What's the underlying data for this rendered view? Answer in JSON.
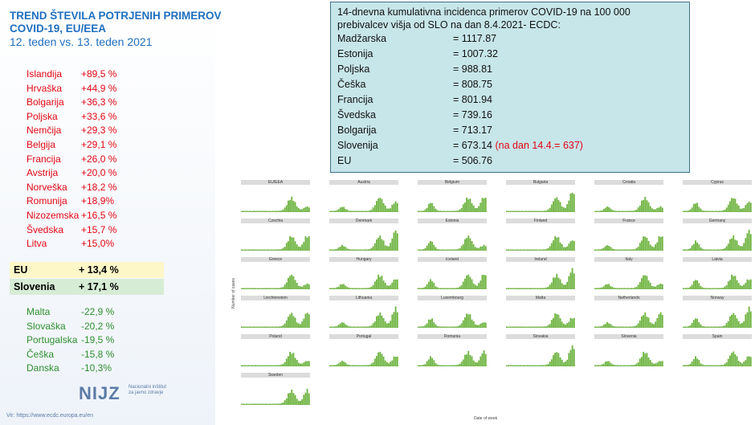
{
  "title": {
    "line1": "TREND ŠTEVILA POTRJENIH PRIMEROV",
    "line2": "COVID-19, EU/EEA",
    "line3": "12. teden vs. 13. teden 2021"
  },
  "increase": [
    {
      "name": "Islandija",
      "value": "+89,5 %"
    },
    {
      "name": "Hrvaška",
      "value": "+44,9 %"
    },
    {
      "name": "Bolgarija",
      "value": "+36,3 %"
    },
    {
      "name": "Poljska",
      "value": "+33,6 %"
    },
    {
      "name": "Nemčija",
      "value": "+29,3 %"
    },
    {
      "name": "Belgija",
      "value": "+29,1 %"
    },
    {
      "name": "Francija",
      "value": "+26,0 %"
    },
    {
      "name": "Avstrija",
      "value": "+20,0 %"
    },
    {
      "name": "Norveška",
      "value": "+18,2 %"
    },
    {
      "name": "Romunija",
      "value": "+18,9%"
    },
    {
      "name": "Nizozemska",
      "value": "+16,5 %"
    },
    {
      "name": "Švedska",
      "value": "+15,7 %"
    },
    {
      "name": "Litva",
      "value": "+15,0%"
    }
  ],
  "highlight": [
    {
      "name": "EU",
      "value": "+ 13,4 %",
      "color": "#fdf7c8"
    },
    {
      "name": "Slovenia",
      "value": "+ 17,1 %",
      "color": "#d7ecd5"
    }
  ],
  "decrease": [
    {
      "name": "Malta",
      "value": "-22,9 %"
    },
    {
      "name": "Slovaška",
      "value": "-20,2 %"
    },
    {
      "name": "Portugalska",
      "value": "-19,5 %"
    },
    {
      "name": "Češka",
      "value": "-15,8 %"
    },
    {
      "name": "Danska",
      "value": "-10,3%"
    }
  ],
  "logo": {
    "mark": "NIJZ",
    "line1": "Nacionalni inštitut",
    "line2": "za javno zdravje"
  },
  "source": "Vir: https://www.ecdc.europa.eu/en",
  "infobox": {
    "heading": "14-dnevna kumulativna incidenca primerov COVID-19 na 100 000 prebivalcev višja  od SLO na dan 8.4.2021- ECDC:",
    "rows": [
      {
        "name": "Madžarska",
        "value": "= 1117.87"
      },
      {
        "name": "Estonija",
        "value": "= 1007.32"
      },
      {
        "name": "Poljska",
        "value": "= 988.81"
      },
      {
        "name": "Češka",
        "value": "= 808.75"
      },
      {
        "name": "Francija",
        "value": "= 801.94"
      },
      {
        "name": "Švedska",
        "value": "= 739.16"
      },
      {
        "name": "Bolgarija",
        "value": "= 713.17"
      },
      {
        "name": "Slovenija",
        "value": "= 673.14",
        "note": "(na dan 14.4.= 637)"
      },
      {
        "name": "EU",
        "value": "= 506.76"
      }
    ],
    "background": "#c7e6ea"
  },
  "chart_grid": {
    "ylabel": "Number of cases",
    "xlabel": "Date of week",
    "bar_color": "#6db33f",
    "panels": [
      "EU/EEA",
      "Austria",
      "Belgium",
      "Bulgaria",
      "Croatia",
      "Cyprus",
      "Czechia",
      "Denmark",
      "Estonia",
      "Finland",
      "France",
      "Germany",
      "Greece",
      "Hungary",
      "Iceland",
      "Ireland",
      "Italy",
      "Latvia",
      "Liechtenstein",
      "Lithuania",
      "Luxembourg",
      "Malta",
      "Netherlands",
      "Norway",
      "Poland",
      "Portugal",
      "Romania",
      "Slovakia",
      "Slovenia",
      "Spain",
      "Sweden"
    ]
  }
}
